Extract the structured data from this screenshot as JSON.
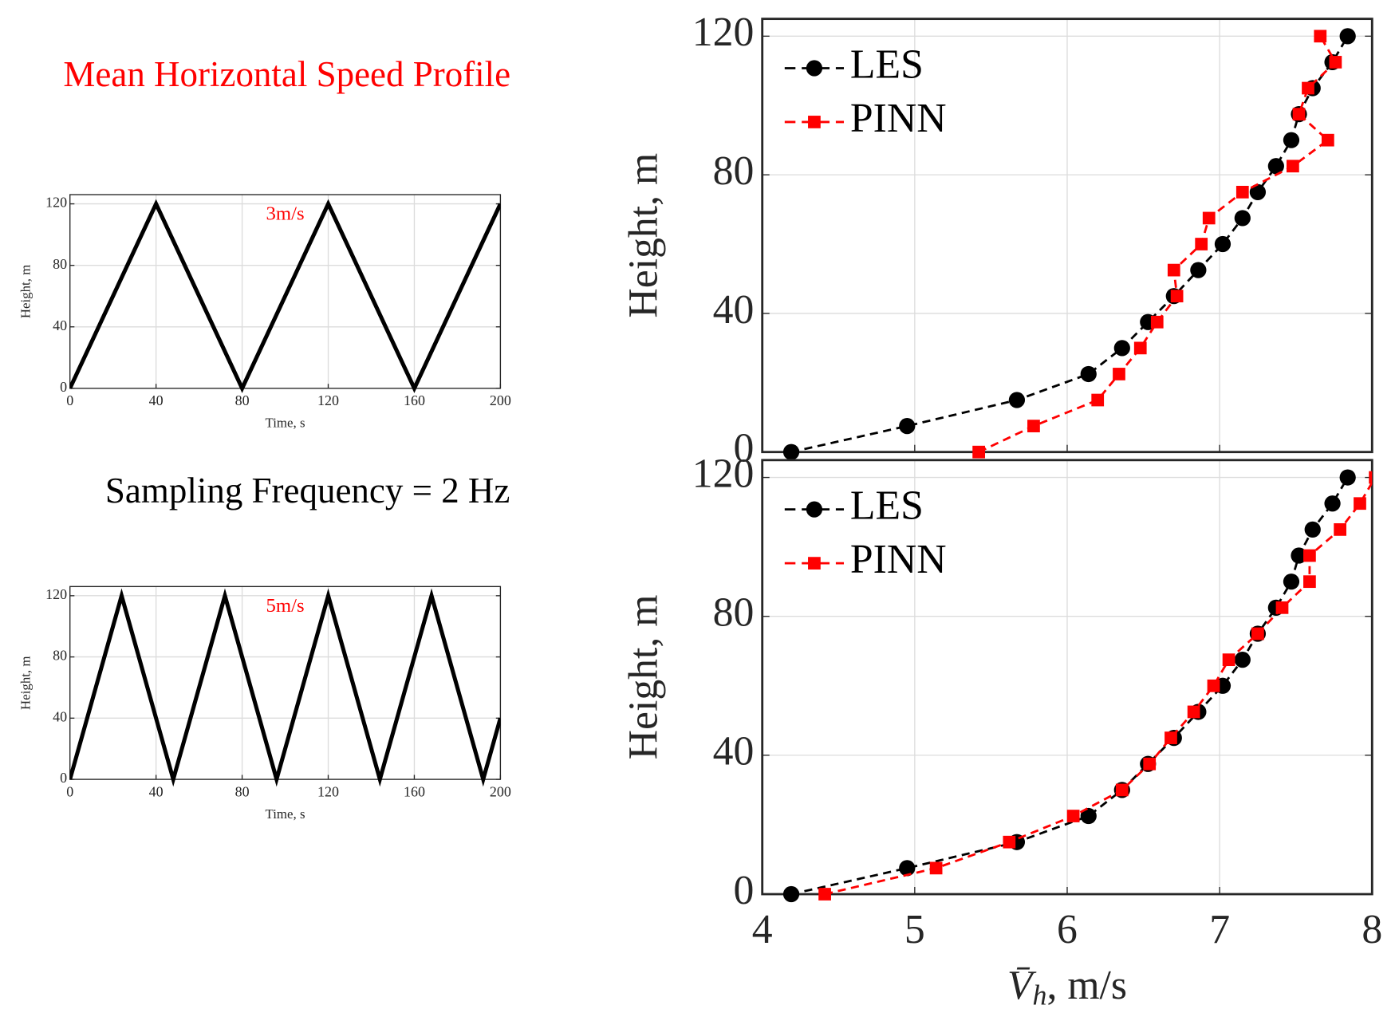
{
  "title": "Mean Horizontal Speed Profile",
  "title_color": "#ff0000",
  "note": "Sampling Frequency = 2 Hz",
  "chart_data": [
    {
      "type": "line",
      "annotation": "3m/s",
      "annotation_color": "#ff0000",
      "x": [
        0,
        40,
        80,
        120,
        160,
        200
      ],
      "values": [
        0,
        120,
        0,
        120,
        0,
        120
      ],
      "color": "#000000",
      "xlabel": "Time, s",
      "ylabel": "Height, m",
      "xlim": [
        0,
        200
      ],
      "ylim": [
        0,
        126
      ],
      "xticks": [
        0,
        40,
        80,
        120,
        160,
        200
      ],
      "yticks": [
        0,
        40,
        80,
        120
      ],
      "grid": true
    },
    {
      "type": "line",
      "annotation": "5m/s",
      "annotation_color": "#ff0000",
      "x": [
        0,
        24,
        48,
        72,
        96,
        120,
        144,
        168,
        192,
        200
      ],
      "values": [
        0,
        120,
        0,
        120,
        0,
        120,
        0,
        120,
        0,
        40
      ],
      "color": "#000000",
      "xlabel": "Time, s",
      "ylabel": "Height, m",
      "xlim": [
        0,
        200
      ],
      "ylim": [
        0,
        126
      ],
      "xticks": [
        0,
        40,
        80,
        120,
        160,
        200
      ],
      "yticks": [
        0,
        40,
        80,
        120
      ],
      "grid": true
    },
    {
      "type": "profile",
      "y": [
        0,
        7.5,
        15,
        22.5,
        30,
        37.5,
        45,
        52.5,
        60,
        67.5,
        75,
        82.5,
        90,
        97.5,
        105,
        112.5,
        120
      ],
      "series": [
        {
          "name": "LES",
          "color": "#000000",
          "marker": "circle",
          "values": [
            4.19,
            4.95,
            5.67,
            6.14,
            6.36,
            6.53,
            6.7,
            6.86,
            7.02,
            7.15,
            7.25,
            7.37,
            7.47,
            7.52,
            7.61,
            7.74,
            7.84
          ]
        },
        {
          "name": "PINN",
          "color": "#ff0000",
          "marker": "square",
          "values": [
            5.42,
            5.78,
            6.2,
            6.34,
            6.48,
            6.59,
            6.72,
            6.7,
            6.88,
            6.93,
            7.15,
            7.48,
            7.71,
            7.52,
            7.58,
            7.76,
            7.66
          ]
        }
      ],
      "ylabel": "Height, m",
      "xlim": [
        4,
        8
      ],
      "ylim": [
        0,
        125
      ],
      "xticks": [
        4,
        5,
        6,
        7,
        8
      ],
      "yticks": [
        0,
        40,
        80,
        120
      ],
      "show_xtick_labels": false,
      "grid": true,
      "legend": "upper left"
    },
    {
      "type": "profile",
      "y": [
        0,
        7.5,
        15,
        22.5,
        30,
        37.5,
        45,
        52.5,
        60,
        67.5,
        75,
        82.5,
        90,
        97.5,
        105,
        112.5,
        120
      ],
      "series": [
        {
          "name": "LES",
          "color": "#000000",
          "marker": "circle",
          "values": [
            4.19,
            4.95,
            5.67,
            6.14,
            6.36,
            6.53,
            6.7,
            6.86,
            7.02,
            7.15,
            7.25,
            7.37,
            7.47,
            7.52,
            7.61,
            7.74,
            7.84
          ]
        },
        {
          "name": "PINN",
          "color": "#ff0000",
          "marker": "square",
          "values": [
            4.41,
            5.14,
            5.62,
            6.04,
            6.36,
            6.54,
            6.68,
            6.83,
            6.96,
            7.06,
            7.25,
            7.41,
            7.59,
            7.59,
            7.79,
            7.92,
            8.02
          ]
        }
      ],
      "ylabel": "Height, m",
      "xlabel_symbol": "V̄",
      "xlabel_subscript": "h",
      "xlabel_unit": ", m/s",
      "xlim": [
        4,
        8
      ],
      "ylim": [
        0,
        125
      ],
      "xticks": [
        4,
        5,
        6,
        7,
        8
      ],
      "yticks": [
        0,
        40,
        80,
        120
      ],
      "show_xtick_labels": true,
      "grid": true,
      "legend": "upper left"
    }
  ]
}
